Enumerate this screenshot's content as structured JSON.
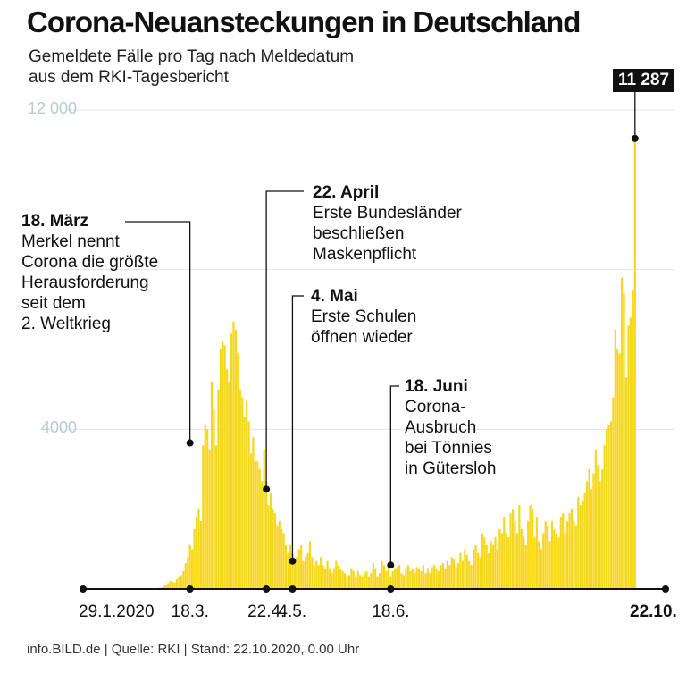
{
  "header": {
    "title": "Corona-Neuansteckungen in Deutschland",
    "subtitle_lines": [
      "Gemeldete Fälle pro Tag nach Meldedatum",
      "aus dem RKI-Tagesbericht"
    ]
  },
  "footer": "info.BILD.de | Quelle: RKI | Stand: 22.10.2020, 0.00 Uhr",
  "peak_label": "11 287",
  "colors": {
    "bar": "#f5d81e",
    "text": "#111111",
    "grid": "#e6e6e6",
    "ytick": "#b9c9cf"
  },
  "annotations": [
    {
      "date": "2020-03-18",
      "value": 3660,
      "heading": "18. März",
      "lines": [
        "Merkel nennt",
        "Corona die größte",
        "Herausforderung",
        "seit dem",
        "2. Weltkrieg"
      ]
    },
    {
      "date": "2020-04-22",
      "value": 2500,
      "heading": "22. April",
      "lines": [
        "Erste Bundesländer",
        "beschließen",
        "Maskenpflicht"
      ]
    },
    {
      "date": "2020-05-04",
      "value": 700,
      "heading": "4. Mai",
      "lines": [
        "Erste Schulen",
        "öffnen wieder"
      ]
    },
    {
      "date": "2020-06-18",
      "value": 600,
      "heading": "18. Juni",
      "lines": [
        "Corona-",
        "Ausbruch",
        "bei Tönnies",
        "in Gütersloh"
      ]
    }
  ],
  "chart_data": {
    "type": "bar",
    "title": "Corona-Neuansteckungen in Deutschland",
    "subtitle": "Gemeldete Fälle pro Tag nach Meldedatum aus dem RKI-Tagesbericht",
    "x_start": "2020-01-29",
    "x_end": "2020-10-22",
    "ylim": [
      0,
      12000
    ],
    "yticks": [
      4000,
      12000
    ],
    "ytick_labels": [
      "4000",
      "12 000"
    ],
    "grid": true,
    "xtick_labels": [
      {
        "date": "2020-01-29",
        "label": "29.1.2020",
        "bold": false
      },
      {
        "date": "2020-03-18",
        "label": "18.3.",
        "bold": false
      },
      {
        "date": "2020-04-22",
        "label": "22.4.",
        "bold": false
      },
      {
        "date": "2020-05-04",
        "label": "4.5.",
        "bold": false
      },
      {
        "date": "2020-06-18",
        "label": "18.6.",
        "bold": false
      },
      {
        "date": "2020-10-22",
        "label": "22.10.",
        "bold": true
      }
    ],
    "series": [
      {
        "values": [
          0,
          0,
          0,
          0,
          0,
          0,
          0,
          0,
          0,
          0,
          0,
          0,
          0,
          0,
          0,
          0,
          0,
          0,
          0,
          0,
          0,
          0,
          0,
          0,
          0,
          0,
          0,
          0,
          0,
          0,
          0,
          0,
          0,
          0,
          0,
          30,
          40,
          80,
          110,
          150,
          200,
          180,
          170,
          250,
          300,
          350,
          450,
          650,
          800,
          1100,
          1000,
          1500,
          1800,
          2000,
          1700,
          3600,
          4100,
          4000,
          3500,
          5200,
          4500,
          3600,
          5000,
          6000,
          6200,
          6100,
          5500,
          5200,
          6400,
          6700,
          6500,
          5900,
          5000,
          4800,
          4300,
          4700,
          4200,
          3400,
          3800,
          3200,
          3200,
          3000,
          2700,
          3500,
          2700,
          2100,
          2400,
          2000,
          1900,
          1600,
          1700,
          1500,
          1400,
          1100,
          900,
          1100,
          900,
          700,
          800,
          1000,
          1100,
          700,
          800,
          900,
          1200,
          800,
          600,
          700,
          600,
          800,
          600,
          500,
          700,
          500,
          400,
          500,
          700,
          600,
          500,
          450,
          400,
          300,
          350,
          500,
          450,
          300,
          450,
          350,
          300,
          400,
          450,
          300,
          400,
          650,
          500,
          300,
          400,
          700,
          600,
          450,
          550,
          300,
          450,
          500,
          550,
          600,
          400,
          350,
          500,
          600,
          450,
          500,
          400,
          550,
          500,
          450,
          600,
          400,
          500,
          400,
          550,
          600,
          500,
          450,
          600,
          650,
          500,
          700,
          600,
          800,
          750,
          550,
          650,
          900,
          700,
          1000,
          850,
          700,
          600,
          1000,
          1100,
          900,
          800,
          1400,
          1300,
          1100,
          900,
          1200,
          1100,
          1300,
          1000,
          1500,
          1400,
          1800,
          1400,
          1300,
          1900,
          2000,
          1700,
          1400,
          2100,
          1500,
          1300,
          1100,
          1700,
          2100,
          2000,
          1300,
          1800,
          1200,
          1000,
          1400,
          1700,
          1600,
          1200,
          1700,
          1500,
          1400,
          1300,
          1800,
          1900,
          1400,
          1700,
          1900,
          2000,
          1700,
          1600,
          2300,
          2100,
          2200,
          2400,
          2700,
          3000,
          2500,
          2900,
          3500,
          3100,
          2700,
          3000,
          3600,
          4000,
          4100,
          4200,
          4800,
          6500,
          6000,
          5900,
          7800,
          7400,
          5300,
          6600,
          6800,
          7500,
          11287
        ]
      }
    ]
  }
}
